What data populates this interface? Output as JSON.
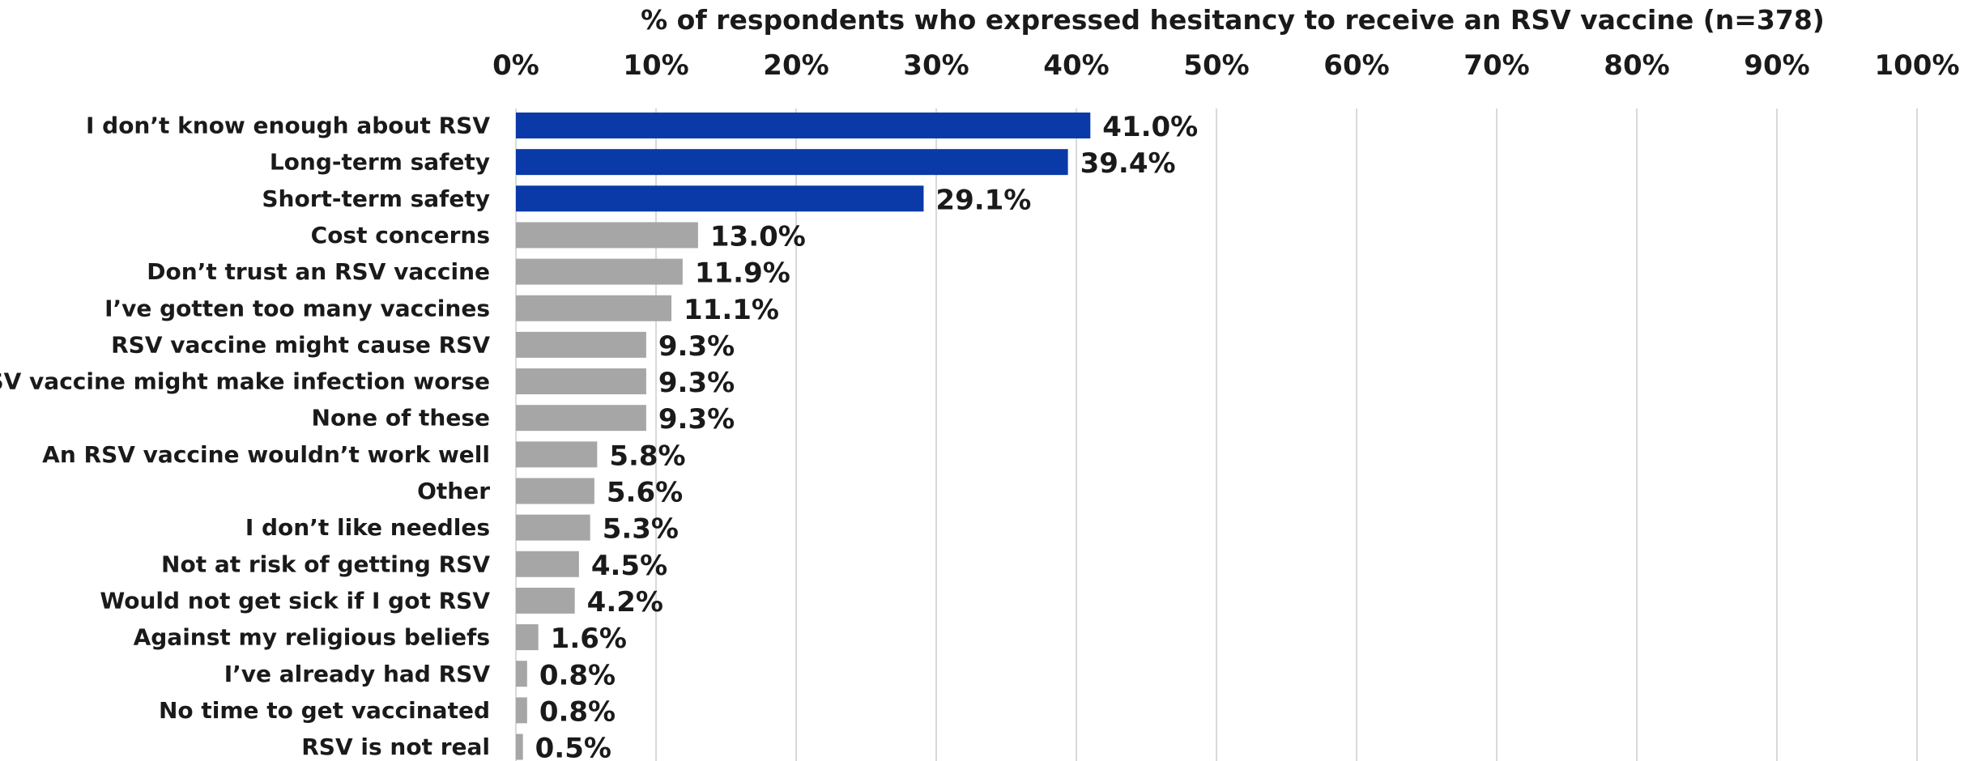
{
  "chart_data": {
    "type": "bar",
    "orientation": "horizontal",
    "title": "",
    "xlabel": "% of respondents who expressed hesitancy to receive an RSV vaccine (n=378)",
    "ylabel": "",
    "xlim": [
      0,
      100
    ],
    "x_ticks": [
      "0%",
      "10%",
      "20%",
      "30%",
      "40%",
      "50%",
      "60%",
      "70%",
      "80%",
      "90%",
      "100%"
    ],
    "x_axis_position": "top",
    "grid": true,
    "legend": "none",
    "categories": [
      "I don’t know enough about RSV",
      "Long-term safety",
      "Short-term safety",
      "Cost concerns",
      "Don’t trust an RSV vaccine",
      "I’ve gotten too many vaccines",
      "RSV vaccine might cause RSV",
      "RSV vaccine might make infection worse",
      "None of these",
      "An RSV vaccine wouldn’t work well",
      "Other",
      "I don’t like needles",
      "Not at risk of getting RSV",
      "Would not get sick if I got RSV",
      "Against my religious beliefs",
      "I’ve already had RSV",
      "No time to get vaccinated",
      "RSV is not real"
    ],
    "values": [
      41.0,
      39.4,
      29.1,
      13.0,
      11.9,
      11.1,
      9.3,
      9.3,
      9.3,
      5.8,
      5.6,
      5.3,
      4.5,
      4.2,
      1.6,
      0.8,
      0.8,
      0.5
    ],
    "value_labels": [
      "41.0%",
      "39.4%",
      "29.1%",
      "13.0%",
      "11.9%",
      "11.1%",
      "9.3%",
      "9.3%",
      "9.3%",
      "5.8%",
      "5.6%",
      "5.3%",
      "4.5%",
      "4.2%",
      "1.6%",
      "0.8%",
      "0.8%",
      "0.5%"
    ],
    "highlight_count": 3,
    "colors": {
      "highlight": "#0a3aa8",
      "default": "#a6a6a6"
    }
  }
}
